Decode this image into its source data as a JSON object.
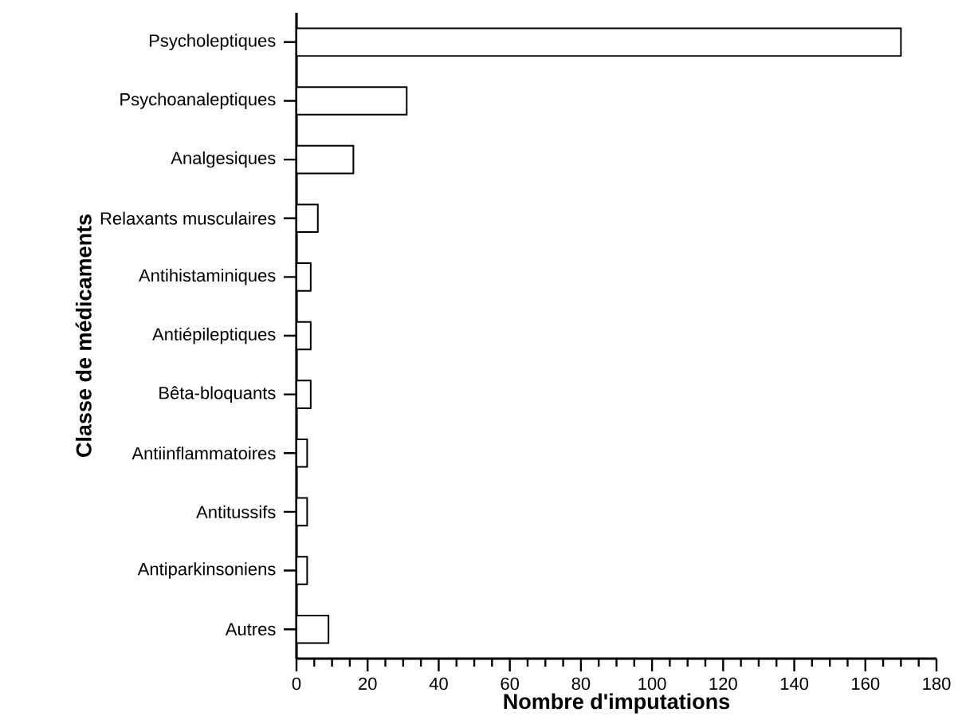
{
  "chart_data": {
    "type": "bar",
    "orientation": "horizontal",
    "xlabel": "Nombre d'imputations",
    "ylabel": "Classe de médicaments",
    "categories": [
      "Psycholeptiques",
      "Psychoanaleptiques",
      "Analgesiques",
      "Relaxants musculaires",
      "Antihistaminiques",
      "Antiépileptiques",
      "Bêta-bloquants",
      "Antiinflammatoires",
      "Antitussifs",
      "Antiparkinsoniens",
      "Autres"
    ],
    "values": [
      170,
      31,
      16,
      6,
      4,
      4,
      4,
      3,
      3,
      3,
      9
    ],
    "color": "#000000",
    "xlim": [
      0,
      180
    ],
    "xticks": [
      0,
      {
        "value": 5,
        "label": null
      },
      {
        "value": 10,
        "label": null
      },
      {
        "value": 15,
        "label": null
      },
      20,
      {
        "value": 25,
        "label": null
      },
      {
        "value": 30,
        "label": null
      },
      {
        "value": 35,
        "label": null
      },
      40,
      {
        "value": 45,
        "label": null
      },
      {
        "value": 50,
        "label": null
      },
      {
        "value": 55,
        "label": null
      },
      60,
      {
        "value": 65,
        "label": null
      },
      {
        "value": 70,
        "label": null
      },
      {
        "value": 75,
        "label": null
      },
      80,
      {
        "value": 85,
        "label": null
      },
      {
        "value": 90,
        "label": null
      },
      {
        "value": 95,
        "label": null
      },
      100,
      {
        "value": 105,
        "label": null
      },
      {
        "value": 110,
        "label": null
      },
      {
        "value": 115,
        "label": null
      },
      120,
      {
        "value": 125,
        "label": null
      },
      {
        "value": 130,
        "label": null
      },
      {
        "value": 135,
        "label": null
      },
      140,
      {
        "value": 145,
        "label": null
      },
      {
        "value": 150,
        "label": null
      },
      {
        "value": 155,
        "label": null
      },
      160,
      {
        "value": 165,
        "label": null
      },
      {
        "value": 170,
        "label": null
      },
      {
        "value": 175,
        "label": null
      },
      180
    ],
    "grid": false
  }
}
